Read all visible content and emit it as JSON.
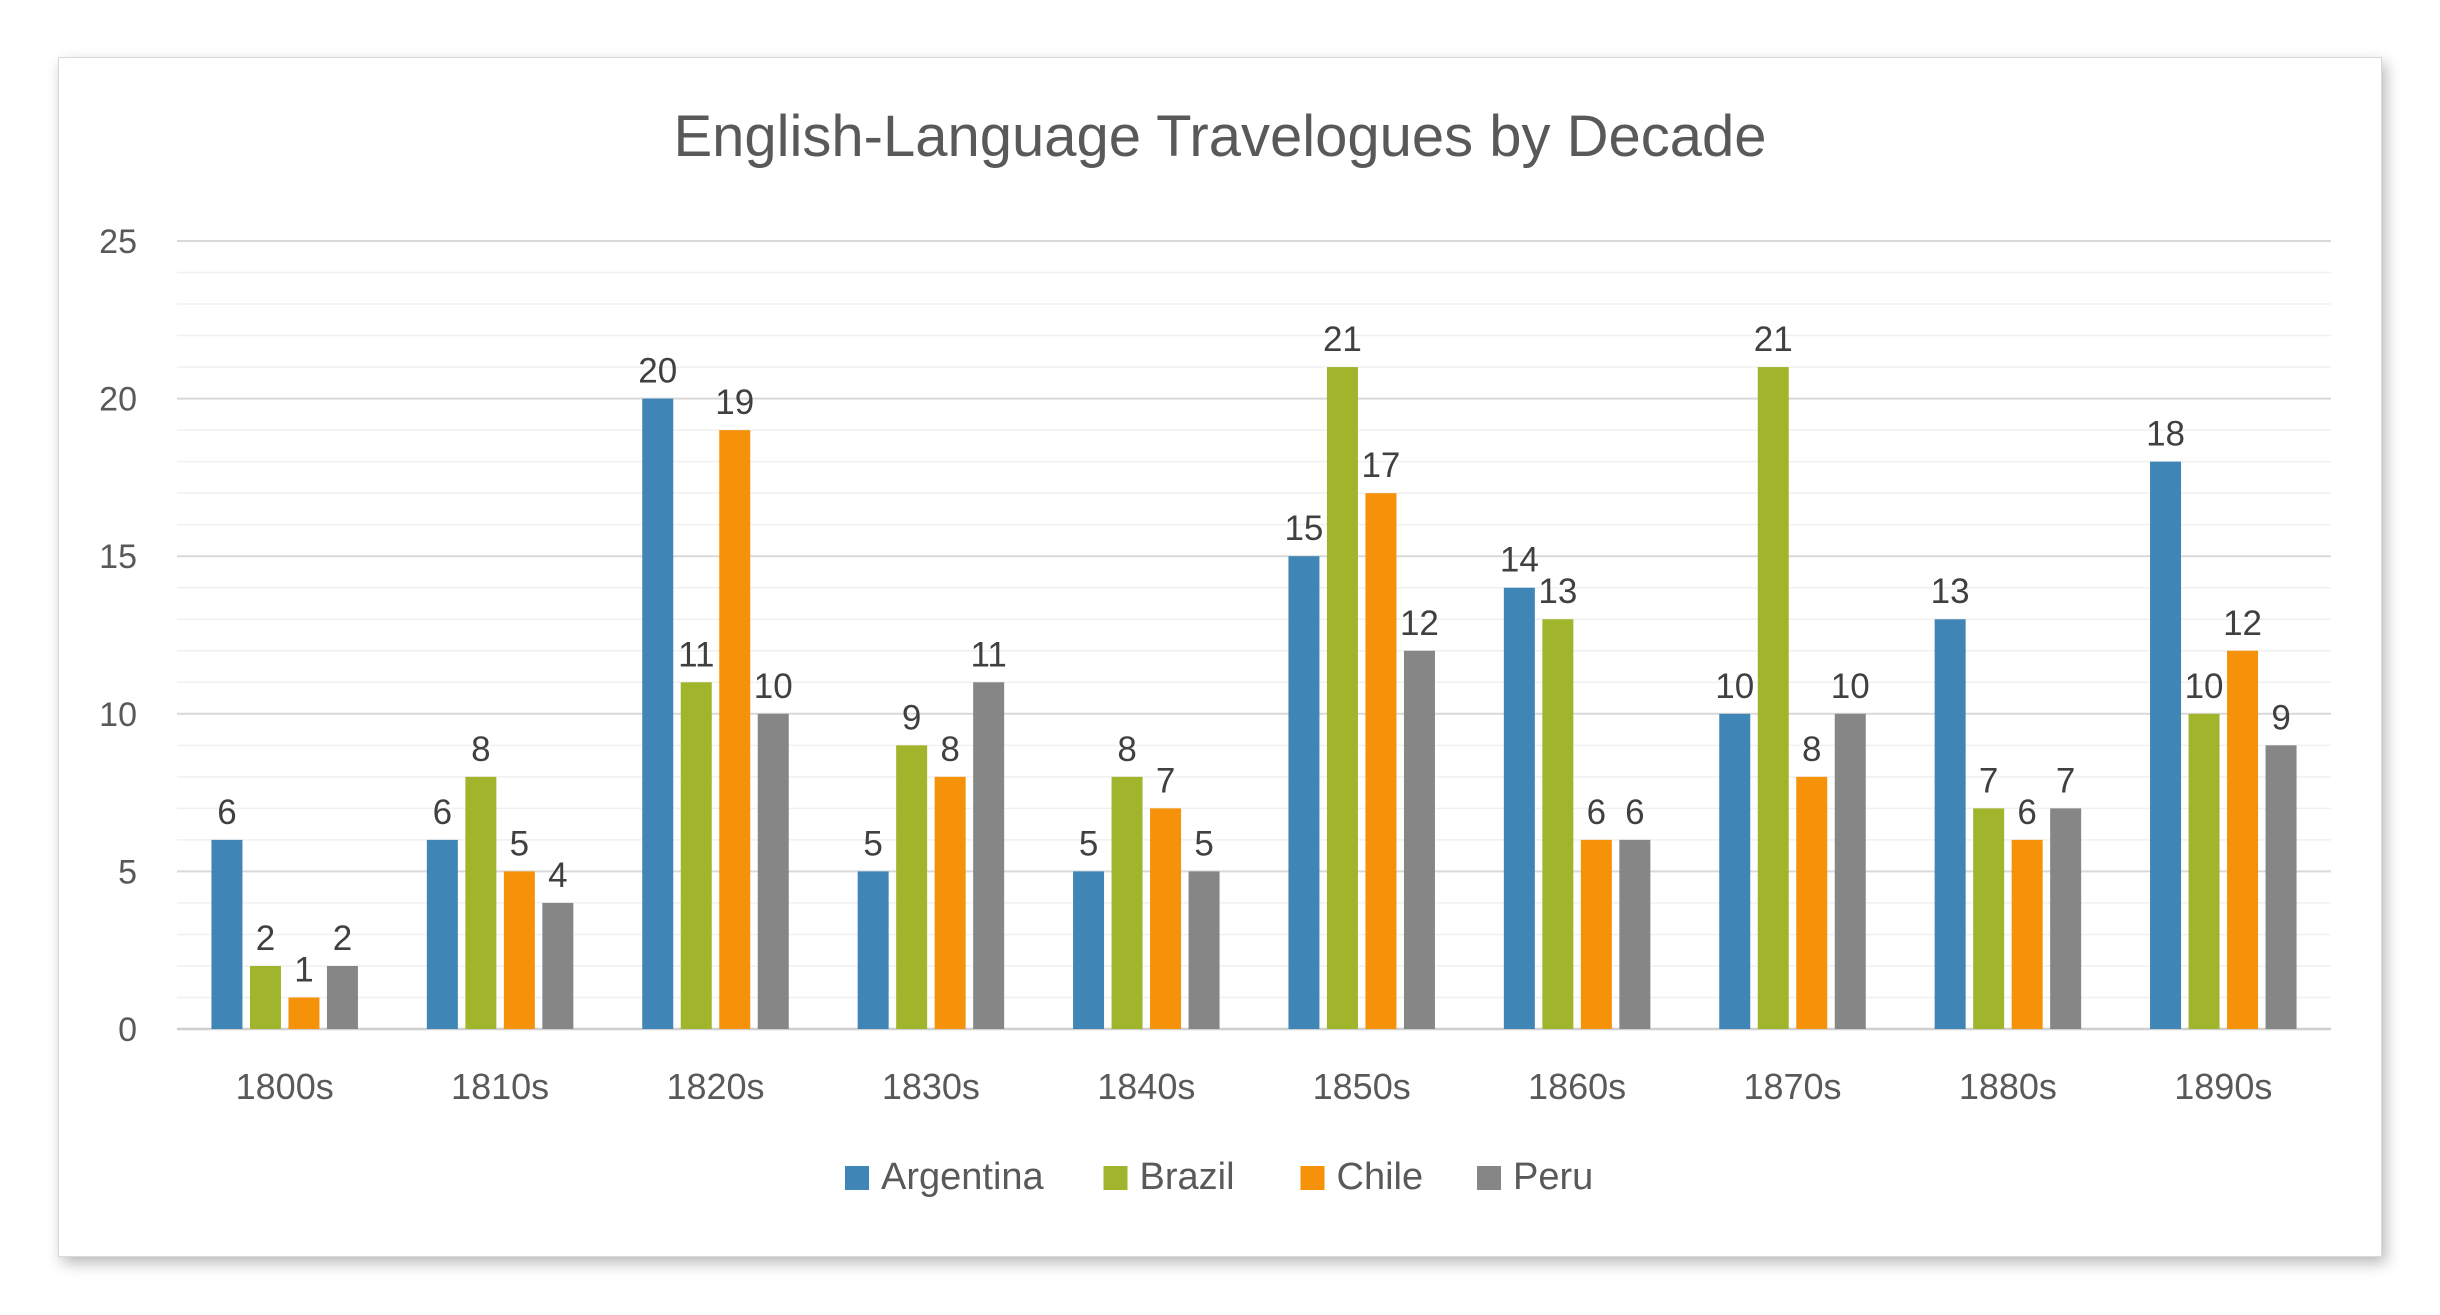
{
  "chart_data": {
    "type": "bar",
    "title": "English-Language Travelogues by Decade",
    "xlabel": "",
    "ylabel": "",
    "ylim": [
      0,
      25
    ],
    "yticks": [
      0,
      5,
      10,
      15,
      20,
      25
    ],
    "grid": true,
    "legend_position": "bottom",
    "categories": [
      "1800s",
      "1810s",
      "1820s",
      "1830s",
      "1840s",
      "1850s",
      "1860s",
      "1870s",
      "1880s",
      "1890s"
    ],
    "series": [
      {
        "name": "Argentina",
        "color": "#3f86b6",
        "values": [
          6,
          6,
          20,
          5,
          5,
          15,
          14,
          10,
          13,
          18
        ]
      },
      {
        "name": "Brazil",
        "color": "#a0b52c",
        "values": [
          2,
          8,
          11,
          9,
          8,
          21,
          13,
          21,
          7,
          10
        ]
      },
      {
        "name": "Chile",
        "color": "#f5920a",
        "values": [
          1,
          5,
          19,
          8,
          7,
          17,
          6,
          8,
          6,
          12
        ]
      },
      {
        "name": "Peru",
        "color": "#868686",
        "values": [
          2,
          4,
          10,
          11,
          5,
          12,
          6,
          10,
          7,
          9
        ]
      }
    ]
  }
}
